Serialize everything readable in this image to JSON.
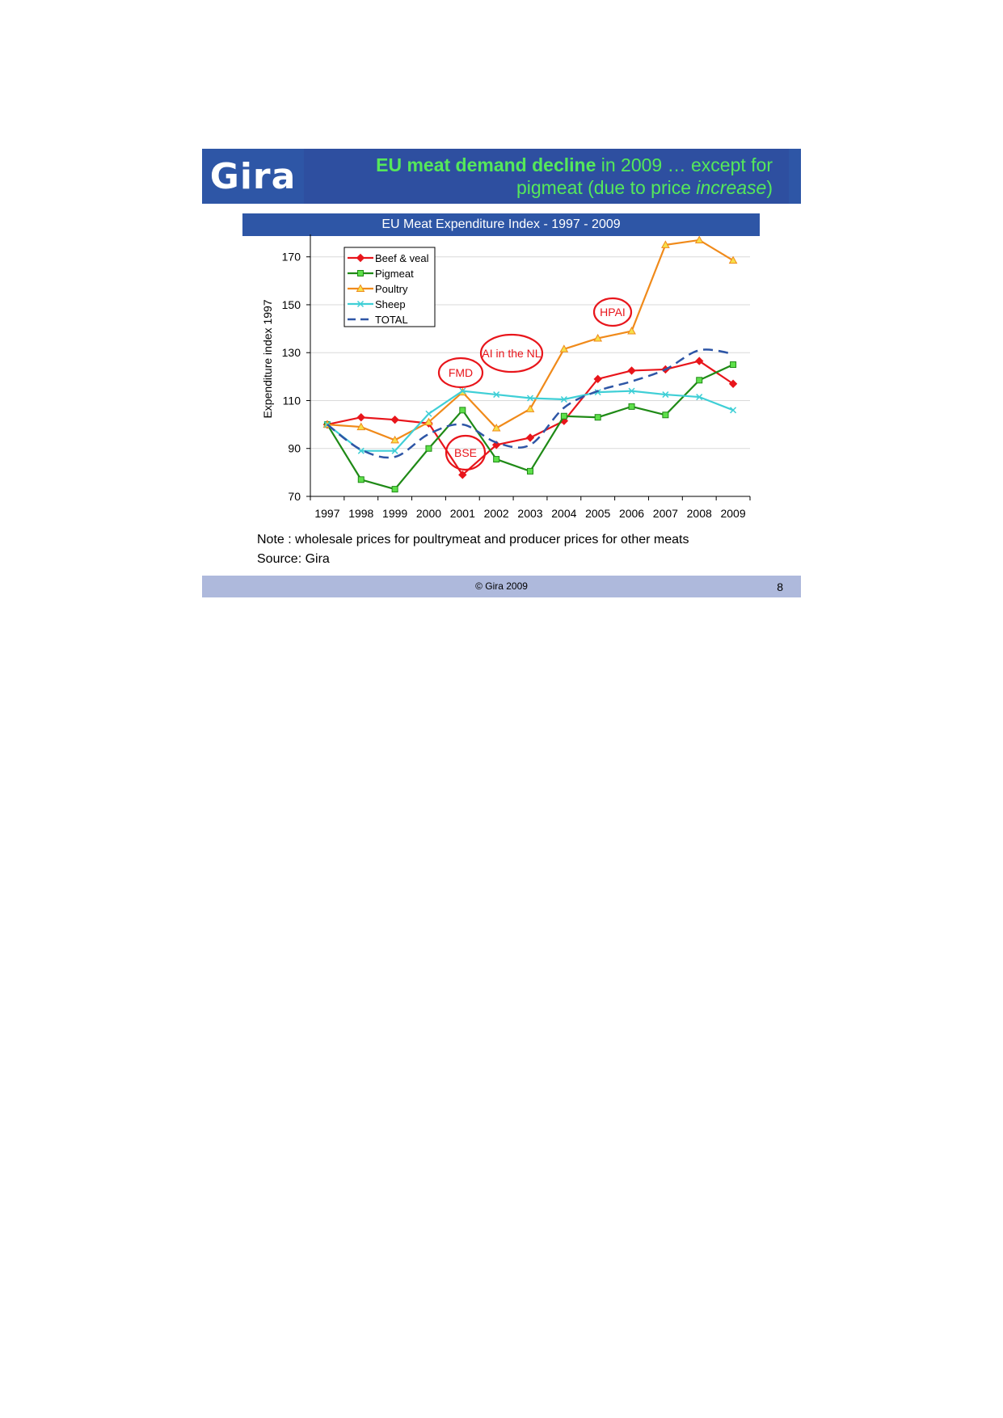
{
  "header": {
    "logo": "Gira",
    "title_bold": "EU meat demand decline",
    "title_rest_line1": " in 2009 … except for",
    "title_line2_pre": "pigmeat (due to price ",
    "title_line2_italic": "increase",
    "title_line2_post": ")"
  },
  "chart_data": {
    "type": "line",
    "title": "EU Meat Expenditure Index - 1997 - 2009",
    "xlabel": "",
    "ylabel": "Expenditure index 1997",
    "ylim": [
      70,
      178
    ],
    "yticks": [
      70,
      90,
      110,
      130,
      150,
      170
    ],
    "grid": true,
    "legend_position": "top-left",
    "categories": [
      "1997",
      "1998",
      "1999",
      "2000",
      "2001",
      "2002",
      "2003",
      "2004",
      "2005",
      "2006",
      "2007",
      "2008",
      "2009"
    ],
    "series": [
      {
        "name": "Beef & veal",
        "color": "#e8151b",
        "marker": "diamond",
        "dashed": false,
        "values": [
          100,
          103,
          102,
          100.5,
          79,
          91.5,
          94.5,
          101.5,
          119,
          122.5,
          123,
          126.5,
          117
        ]
      },
      {
        "name": "Pigmeat",
        "color": "#1f8a16",
        "marker": "square",
        "dashed": false,
        "values": [
          100,
          77,
          73,
          90,
          106,
          85.5,
          80.5,
          103.5,
          103,
          107.5,
          104,
          118.5,
          125
        ]
      },
      {
        "name": "Poultry",
        "color": "#f08a1a",
        "marker": "triangle",
        "dashed": false,
        "values": [
          100,
          99,
          93.5,
          101,
          113.5,
          98.5,
          106.5,
          131.5,
          136,
          139,
          175,
          177,
          168.5
        ]
      },
      {
        "name": "Sheep",
        "color": "#3fcfd6",
        "marker": "x",
        "dashed": false,
        "values": [
          100,
          89,
          89,
          104.5,
          114,
          112.5,
          111,
          110.5,
          113.5,
          114,
          112.5,
          111.5,
          106
        ]
      },
      {
        "name": "TOTAL",
        "color": "#2e56a6",
        "marker": "none",
        "dashed": true,
        "values": [
          100,
          89.5,
          86.5,
          96,
          100,
          92.5,
          91.5,
          107,
          114,
          118,
          123,
          131,
          129.5
        ]
      }
    ],
    "annotations": [
      "HPAI",
      "AI in the NL",
      "FMD",
      "BSE"
    ]
  },
  "note": "Note : wholesale  prices for poultrymeat and producer prices for other meats",
  "source": "Source: Gira",
  "footer": {
    "copyright": "© Gira 2009",
    "page": "8"
  }
}
